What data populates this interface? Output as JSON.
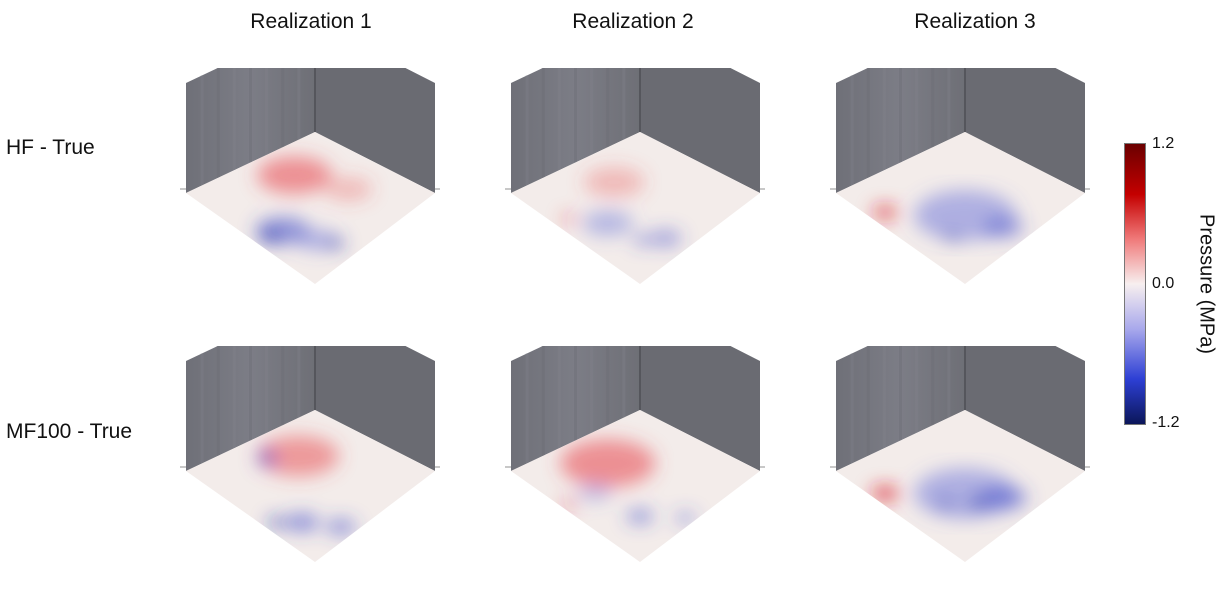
{
  "columns": [
    "Realization 1",
    "Realization 2",
    "Realization 3"
  ],
  "rows": [
    "HF - True",
    "MF100 - True"
  ],
  "colorbar": {
    "title": "Pressure (MPa)",
    "ticks": [
      "1.2",
      "0.0",
      "-1.2"
    ],
    "colormap": "diverging blue-white-red",
    "colors": {
      "max": "#6b0000",
      "mid": "#f7efef",
      "min": "#0b1659"
    }
  },
  "panels": [
    {
      "row": 0,
      "col": 0,
      "blobs": [
        {
          "color": "#e8464a",
          "u": 0.62,
          "v": 0.22,
          "r": 0.22,
          "o": 0.55
        },
        {
          "color": "#3d47c9",
          "u": 0.2,
          "v": 0.55,
          "r": 0.16,
          "o": 0.55
        },
        {
          "color": "#1b2aa8",
          "u": 0.1,
          "v": 0.55,
          "r": 0.06,
          "o": 0.85
        },
        {
          "color": "#5b66d6",
          "u": 0.3,
          "v": 0.72,
          "r": 0.12,
          "o": 0.45
        },
        {
          "color": "#1b2aa8",
          "u": 0.36,
          "v": 0.8,
          "r": 0.05,
          "o": 0.8
        },
        {
          "color": "#e8464a",
          "u": 0.78,
          "v": 0.48,
          "r": 0.14,
          "o": 0.3
        }
      ]
    },
    {
      "row": 0,
      "col": 1,
      "blobs": [
        {
          "color": "#e8464a",
          "u": 0.55,
          "v": 0.25,
          "r": 0.18,
          "o": 0.3
        },
        {
          "color": "#5b66d6",
          "u": 0.25,
          "v": 0.5,
          "r": 0.15,
          "o": 0.4
        },
        {
          "color": "#3d47c9",
          "u": 0.42,
          "v": 0.78,
          "r": 0.09,
          "o": 0.5
        },
        {
          "color": "#d9202a",
          "u": 0.1,
          "v": 0.35,
          "r": 0.04,
          "o": 0.7
        },
        {
          "color": "#3d47c9",
          "u": 0.3,
          "v": 0.72,
          "r": 0.05,
          "o": 0.7
        }
      ]
    },
    {
      "row": 0,
      "col": 2,
      "blobs": [
        {
          "color": "#5b66d6",
          "u": 0.45,
          "v": 0.55,
          "r": 0.3,
          "o": 0.45
        },
        {
          "color": "#3d47c9",
          "u": 0.55,
          "v": 0.75,
          "r": 0.12,
          "o": 0.45
        },
        {
          "color": "#d9202a",
          "u": 0.1,
          "v": 0.28,
          "r": 0.07,
          "o": 0.85
        },
        {
          "color": "#1b2aa8",
          "u": 0.25,
          "v": 0.65,
          "r": 0.04,
          "o": 0.8
        }
      ]
    },
    {
      "row": 1,
      "col": 0,
      "blobs": [
        {
          "color": "#e8464a",
          "u": 0.62,
          "v": 0.25,
          "r": 0.24,
          "o": 0.5
        },
        {
          "color": "#3d47c9",
          "u": 0.2,
          "v": 0.7,
          "r": 0.1,
          "o": 0.6
        },
        {
          "color": "#1b2aa8",
          "u": 0.08,
          "v": 0.62,
          "r": 0.05,
          "o": 0.85
        },
        {
          "color": "#3d47c9",
          "u": 0.45,
          "v": 0.18,
          "r": 0.06,
          "o": 0.7
        },
        {
          "color": "#1b2aa8",
          "u": 0.5,
          "v": 0.12,
          "r": 0.03,
          "o": 0.9
        },
        {
          "color": "#3d47c9",
          "u": 0.35,
          "v": 0.85,
          "r": 0.09,
          "o": 0.55
        }
      ]
    },
    {
      "row": 1,
      "col": 1,
      "blobs": [
        {
          "color": "#e8464a",
          "u": 0.5,
          "v": 0.25,
          "r": 0.28,
          "o": 0.55
        },
        {
          "color": "#3d47c9",
          "u": 0.3,
          "v": 0.7,
          "r": 0.08,
          "o": 0.55
        },
        {
          "color": "#5b66d6",
          "u": 0.25,
          "v": 0.4,
          "r": 0.1,
          "o": 0.35
        },
        {
          "color": "#d9202a",
          "u": 0.05,
          "v": 0.4,
          "r": 0.04,
          "o": 0.8
        },
        {
          "color": "#3d47c9",
          "u": 0.5,
          "v": 0.85,
          "r": 0.06,
          "o": 0.5
        }
      ]
    },
    {
      "row": 1,
      "col": 2,
      "blobs": [
        {
          "color": "#5b66d6",
          "u": 0.45,
          "v": 0.55,
          "r": 0.3,
          "o": 0.45
        },
        {
          "color": "#3d47c9",
          "u": 0.6,
          "v": 0.7,
          "r": 0.14,
          "o": 0.5
        },
        {
          "color": "#1b2aa8",
          "u": 0.45,
          "v": 0.65,
          "r": 0.06,
          "o": 0.6
        },
        {
          "color": "#d9202a",
          "u": 0.08,
          "v": 0.3,
          "r": 0.08,
          "o": 0.85
        },
        {
          "color": "#1b2aa8",
          "u": 0.3,
          "v": 0.55,
          "r": 0.04,
          "o": 0.8
        }
      ]
    }
  ]
}
